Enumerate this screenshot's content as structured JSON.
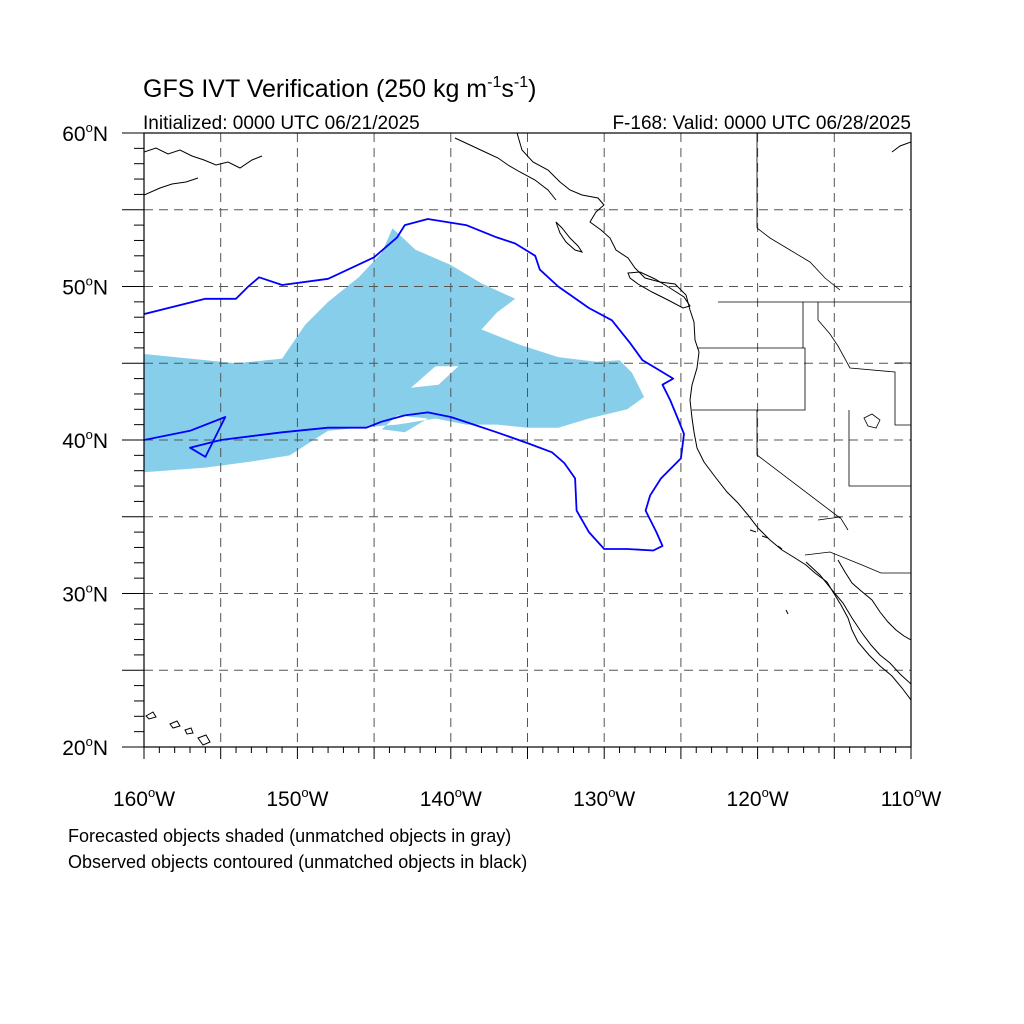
{
  "title": {
    "main": "GFS IVT Verification (250 kg m",
    "exp1": "-1",
    "mid": "s",
    "exp2": "-1",
    "close": ")"
  },
  "subtitle_left": "Initialized: 0000 UTC 06/21/2025",
  "subtitle_right": "F-168: Valid: 0000 UTC 06/28/2025",
  "footnotes": [
    "Forecasted objects shaded (unmatched objects in gray)",
    "Observed objects contoured (unmatched objects in black)"
  ],
  "colors": {
    "forecast_fill": "#87ceeb",
    "observed_contour": "#0000ff",
    "coastline": "#000000",
    "grid": "#555555"
  },
  "chart_data": {
    "type": "map",
    "projection": "cylindrical-equidistant",
    "lon_range": [
      -160,
      -110
    ],
    "lat_range": [
      20,
      60
    ],
    "grid": true,
    "lon_ticks": [
      {
        "value": -160,
        "num": "160",
        "hemi": "W"
      },
      {
        "value": -150,
        "num": "150",
        "hemi": "W"
      },
      {
        "value": -140,
        "num": "140",
        "hemi": "W"
      },
      {
        "value": -130,
        "num": "130",
        "hemi": "W"
      },
      {
        "value": -120,
        "num": "120",
        "hemi": "W"
      },
      {
        "value": -110,
        "num": "110",
        "hemi": "W"
      }
    ],
    "lat_ticks": [
      {
        "value": 20,
        "num": "20",
        "hemi": "N"
      },
      {
        "value": 30,
        "num": "30",
        "hemi": "N"
      },
      {
        "value": 40,
        "num": "40",
        "hemi": "N"
      },
      {
        "value": 50,
        "num": "50",
        "hemi": "N"
      },
      {
        "value": 60,
        "num": "60",
        "hemi": "N"
      }
    ],
    "forecast_object": [
      [
        -160,
        45.6
      ],
      [
        -157,
        45.3
      ],
      [
        -154,
        45.0
      ],
      [
        -151,
        45.3
      ],
      [
        -149.5,
        47.5
      ],
      [
        -148,
        49.0
      ],
      [
        -146,
        50.6
      ],
      [
        -144.5,
        52.2
      ],
      [
        -143.8,
        53.8
      ],
      [
        -142.3,
        52.4
      ],
      [
        -140,
        51.4
      ],
      [
        -138,
        50.2
      ],
      [
        -135.8,
        49.2
      ],
      [
        -137,
        48.3
      ],
      [
        -138,
        47.2
      ],
      [
        -135.5,
        46.2
      ],
      [
        -133,
        45.4
      ],
      [
        -130.5,
        45.1
      ],
      [
        -129,
        45.2
      ],
      [
        -128.2,
        44.4
      ],
      [
        -127.4,
        42.8
      ],
      [
        -128.5,
        42.0
      ],
      [
        -131,
        41.4
      ],
      [
        -133,
        40.8
      ],
      [
        -135,
        40.8
      ],
      [
        -137,
        41.0
      ],
      [
        -139,
        41.0
      ],
      [
        -141,
        41.4
      ],
      [
        -143.5,
        41.0
      ],
      [
        -146,
        40.8
      ],
      [
        -148,
        40.6
      ],
      [
        -150.5,
        39.0
      ],
      [
        -153,
        38.6
      ],
      [
        -156,
        38.2
      ],
      [
        -160,
        37.9
      ]
    ],
    "forecast_holes": [
      [
        [
          -141,
          44.8
        ],
        [
          -139.5,
          44.8
        ],
        [
          -140.8,
          43.6
        ],
        [
          -142.6,
          43.4
        ]
      ],
      [
        [
          -143.5,
          41.6
        ],
        [
          -141.5,
          41.4
        ],
        [
          -143,
          40.5
        ],
        [
          -144.5,
          40.7
        ]
      ]
    ],
    "observed_object": [
      [
        -160,
        48.2
      ],
      [
        -156,
        49.2
      ],
      [
        -154,
        49.2
      ],
      [
        -153.2,
        50.0
      ],
      [
        -152.5,
        50.6
      ],
      [
        -151,
        50.1
      ],
      [
        -148,
        50.5
      ],
      [
        -145,
        51.9
      ],
      [
        -143.5,
        53.2
      ],
      [
        -143,
        54.0
      ],
      [
        -141.5,
        54.4
      ],
      [
        -139,
        54.0
      ],
      [
        -137,
        53.2
      ],
      [
        -135.8,
        52.8
      ],
      [
        -134.5,
        52.0
      ],
      [
        -134.2,
        51.1
      ],
      [
        -133,
        50.0
      ],
      [
        -131,
        48.6
      ],
      [
        -129.5,
        47.8
      ],
      [
        -128.3,
        46.3
      ],
      [
        -127.5,
        45.2
      ],
      [
        -126.5,
        44.6
      ],
      [
        -125.5,
        44.0
      ],
      [
        -126.2,
        43.6
      ],
      [
        -125.7,
        42.6
      ],
      [
        -125.2,
        41.4
      ],
      [
        -124.8,
        40.4
      ],
      [
        -125.0,
        38.8
      ],
      [
        -126.3,
        37.5
      ],
      [
        -127.0,
        36.4
      ],
      [
        -127.3,
        35.4
      ],
      [
        -126.6,
        34.0
      ],
      [
        -126.2,
        33.1
      ],
      [
        -126.8,
        32.8
      ],
      [
        -128.5,
        32.9
      ],
      [
        -130,
        32.9
      ],
      [
        -131.0,
        34.0
      ],
      [
        -131.8,
        35.4
      ],
      [
        -131.9,
        37.5
      ],
      [
        -132.6,
        38.5
      ],
      [
        -133.4,
        39.2
      ],
      [
        -135,
        39.8
      ],
      [
        -137,
        40.5
      ],
      [
        -138.5,
        41.0
      ],
      [
        -140,
        41.5
      ],
      [
        -141.5,
        41.8
      ],
      [
        -143,
        41.6
      ],
      [
        -144.5,
        41.2
      ],
      [
        -145.5,
        40.8
      ],
      [
        -148,
        40.8
      ],
      [
        -151,
        40.5
      ],
      [
        -155,
        40.0
      ],
      [
        -157,
        39.5
      ],
      [
        -156,
        38.9
      ],
      [
        -154.7,
        41.5
      ],
      [
        -157,
        40.6
      ],
      [
        -160,
        40.0
      ]
    ]
  }
}
